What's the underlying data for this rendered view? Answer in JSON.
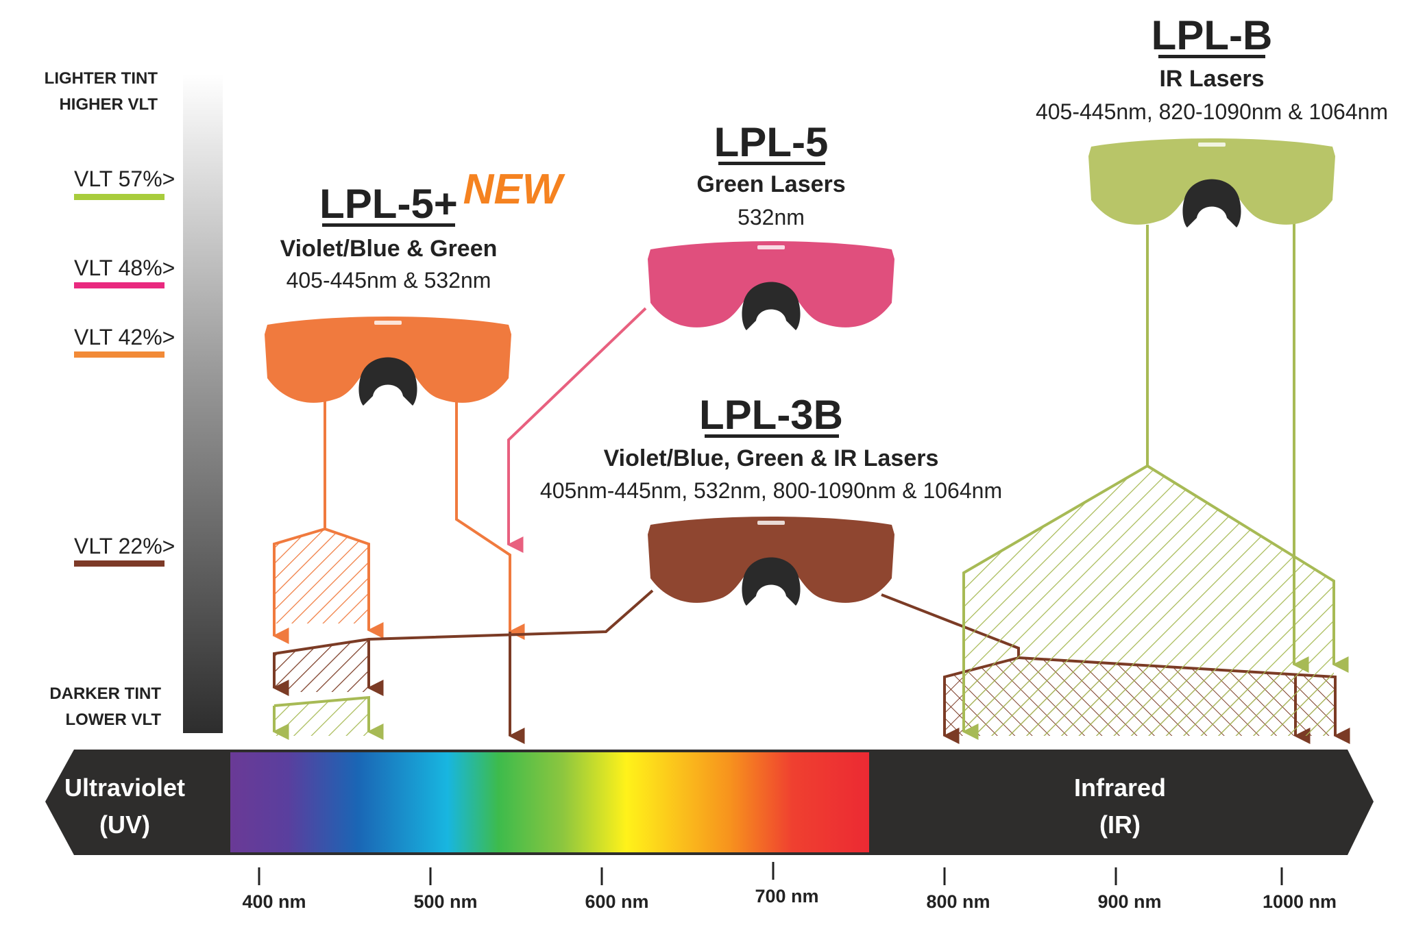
{
  "colors": {
    "lpl5plus": "#f07a3e",
    "lpl5": "#e04f7d",
    "lpl3b": "#7b3b25",
    "lplb": "#a7ba55",
    "vlt57": "#a8cc3c",
    "vlt48": "#e9297f",
    "vlt42": "#f28a37",
    "vlt22": "#7d3a27",
    "new": "#f58220",
    "band": "#2e2d2c"
  },
  "vlt_scale": {
    "top_line1": "LIGHTER TINT",
    "top_line2": "HIGHER VLT",
    "bottom_line1": "DARKER TINT",
    "bottom_line2": "LOWER VLT",
    "levels": [
      {
        "label": "VLT 57%>",
        "color": "#a8cc3c"
      },
      {
        "label": "VLT 48%>",
        "color": "#e9297f"
      },
      {
        "label": "VLT 42%>",
        "color": "#f28a37"
      },
      {
        "label": "VLT 22%>",
        "color": "#7d3a27"
      }
    ]
  },
  "lenses": [
    {
      "name": "LPL-5+",
      "badge": "NEW",
      "protects": "Violet/Blue & Green",
      "range": "405-445nm & 532nm",
      "tint": "#f07a3e",
      "vlt": "42%"
    },
    {
      "name": "LPL-5",
      "protects": "Green Lasers",
      "range": "532nm",
      "tint": "#e04f7d",
      "vlt": "48%"
    },
    {
      "name": "LPL-3B",
      "protects": "Violet/Blue, Green & IR Lasers",
      "range": "405nm-445nm, 532nm, 800-1090nm & 1064nm",
      "tint": "#8f4630",
      "vlt": "22%"
    },
    {
      "name": "LPL-B",
      "protects": "IR Lasers",
      "range": "405-445nm, 820-1090nm & 1064nm",
      "tint": "#b8c568",
      "vlt": "57%"
    }
  ],
  "spectrum": {
    "left_label_line1": "Ultraviolet",
    "left_label_line2": "(UV)",
    "right_label_line1": "Infrared",
    "right_label_line2": "(IR)"
  },
  "axis": {
    "ticks": [
      "400 nm",
      "500 nm",
      "600 nm",
      "700 nm",
      "800 nm",
      "900 nm",
      "1000 nm"
    ]
  }
}
